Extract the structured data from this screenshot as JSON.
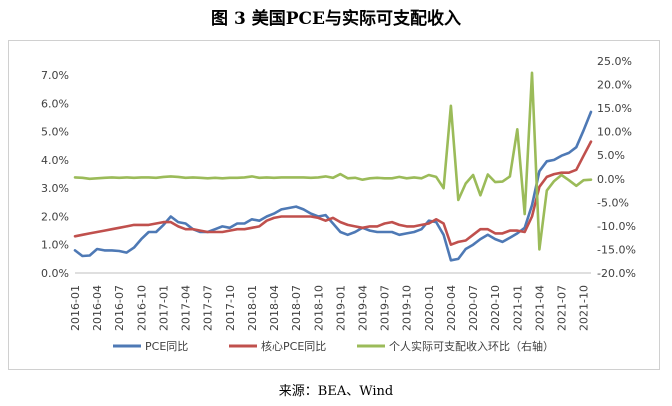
{
  "title": "图 3 美国PCE与实际可支配收入",
  "source": "来源：BEA、Wind",
  "chart_data": {
    "type": "line",
    "x": [
      "2016-01",
      "2016-02",
      "2016-03",
      "2016-04",
      "2016-05",
      "2016-06",
      "2016-07",
      "2016-08",
      "2016-09",
      "2016-10",
      "2016-11",
      "2016-12",
      "2017-01",
      "2017-02",
      "2017-03",
      "2017-04",
      "2017-05",
      "2017-06",
      "2017-07",
      "2017-08",
      "2017-09",
      "2017-10",
      "2017-11",
      "2017-12",
      "2018-01",
      "2018-02",
      "2018-03",
      "2018-04",
      "2018-05",
      "2018-06",
      "2018-07",
      "2018-08",
      "2018-09",
      "2018-10",
      "2018-11",
      "2018-12",
      "2019-01",
      "2019-02",
      "2019-03",
      "2019-04",
      "2019-05",
      "2019-06",
      "2019-07",
      "2019-08",
      "2019-09",
      "2019-10",
      "2019-11",
      "2019-12",
      "2020-01",
      "2020-02",
      "2020-03",
      "2020-04",
      "2020-05",
      "2020-06",
      "2020-07",
      "2020-08",
      "2020-09",
      "2020-10",
      "2020-11",
      "2020-12",
      "2021-01",
      "2021-02",
      "2021-03",
      "2021-04",
      "2021-05",
      "2021-06",
      "2021-07",
      "2021-08",
      "2021-09",
      "2021-10",
      "2021-11"
    ],
    "x_tick_labels": [
      "2016-01",
      "2016-04",
      "2016-07",
      "2016-10",
      "2017-01",
      "2017-04",
      "2017-07",
      "2017-10",
      "2018-01",
      "2018-04",
      "2018-07",
      "2018-10",
      "2019-01",
      "2019-04",
      "2019-07",
      "2019-10",
      "2020-01",
      "2020-04",
      "2020-07",
      "2020-10",
      "2021-01",
      "2021-04",
      "2021-07",
      "2021-10"
    ],
    "y_left": {
      "lim": [
        0,
        7.5
      ],
      "ticks": [
        "0.0%",
        "1.0%",
        "2.0%",
        "3.0%",
        "4.0%",
        "5.0%",
        "6.0%",
        "7.0%"
      ],
      "tick_values": [
        0,
        1,
        2,
        3,
        4,
        5,
        6,
        7
      ]
    },
    "y_right": {
      "lim": [
        -20,
        25
      ],
      "ticks": [
        "-20.0%",
        "-15.0%",
        "-10.0%",
        "-5.0%",
        "0.0%",
        "5.0%",
        "10.0%",
        "15.0%",
        "20.0%",
        "25.0%"
      ],
      "tick_values": [
        -20,
        -15,
        -10,
        -5,
        0,
        5,
        10,
        15,
        20,
        25
      ]
    },
    "series": [
      {
        "name": "PCE同比",
        "axis": "left",
        "color": "#4e79b5",
        "values": [
          0.8,
          0.6,
          0.62,
          0.85,
          0.8,
          0.8,
          0.78,
          0.72,
          0.9,
          1.2,
          1.45,
          1.45,
          1.7,
          2.0,
          1.8,
          1.75,
          1.55,
          1.45,
          1.45,
          1.55,
          1.65,
          1.6,
          1.75,
          1.75,
          1.9,
          1.85,
          2.0,
          2.1,
          2.25,
          2.3,
          2.35,
          2.25,
          2.1,
          2.0,
          2.05,
          1.75,
          1.45,
          1.35,
          1.45,
          1.6,
          1.5,
          1.45,
          1.45,
          1.45,
          1.35,
          1.4,
          1.45,
          1.55,
          1.85,
          1.8,
          1.35,
          0.45,
          0.5,
          0.85,
          1.0,
          1.2,
          1.35,
          1.2,
          1.1,
          1.25,
          1.4,
          1.6,
          2.4,
          3.6,
          3.95,
          4.0,
          4.15,
          4.25,
          4.45,
          5.05,
          5.7
        ]
      },
      {
        "name": "核心PCE同比",
        "axis": "left",
        "color": "#c0504d",
        "values": [
          1.3,
          1.35,
          1.4,
          1.45,
          1.5,
          1.55,
          1.6,
          1.65,
          1.7,
          1.7,
          1.7,
          1.75,
          1.8,
          1.8,
          1.65,
          1.55,
          1.55,
          1.5,
          1.45,
          1.45,
          1.45,
          1.5,
          1.55,
          1.55,
          1.6,
          1.65,
          1.85,
          1.95,
          2.0,
          2.0,
          2.0,
          2.0,
          2.0,
          1.95,
          1.85,
          1.95,
          1.8,
          1.7,
          1.65,
          1.6,
          1.65,
          1.65,
          1.75,
          1.8,
          1.7,
          1.65,
          1.65,
          1.7,
          1.75,
          1.9,
          1.75,
          1.0,
          1.1,
          1.15,
          1.35,
          1.55,
          1.55,
          1.4,
          1.4,
          1.5,
          1.5,
          1.45,
          2.0,
          3.05,
          3.4,
          3.5,
          3.55,
          3.55,
          3.65,
          4.15,
          4.65
        ]
      },
      {
        "name": "个人实际可支配收入环比（右轴）",
        "axis": "right",
        "color": "#9bbb59",
        "values": [
          0.3,
          0.2,
          0.0,
          0.1,
          0.2,
          0.3,
          0.2,
          0.3,
          0.2,
          0.3,
          0.3,
          0.2,
          0.4,
          0.5,
          0.4,
          0.2,
          0.3,
          0.2,
          0.1,
          0.2,
          0.1,
          0.2,
          0.2,
          0.3,
          0.5,
          0.2,
          0.3,
          0.2,
          0.3,
          0.3,
          0.3,
          0.3,
          0.2,
          0.3,
          0.5,
          0.2,
          1.0,
          0.1,
          0.2,
          -0.2,
          0.1,
          0.2,
          0.1,
          0.1,
          0.4,
          0.1,
          0.3,
          0.1,
          0.8,
          0.4,
          -2.0,
          15.5,
          -4.5,
          -1.0,
          0.8,
          -3.5,
          0.9,
          -0.7,
          -0.6,
          0.5,
          10.5,
          -7.5,
          22.5,
          -15.0,
          -2.5,
          -0.5,
          0.8,
          -0.3,
          -1.5,
          -0.3,
          -0.2
        ]
      }
    ]
  }
}
